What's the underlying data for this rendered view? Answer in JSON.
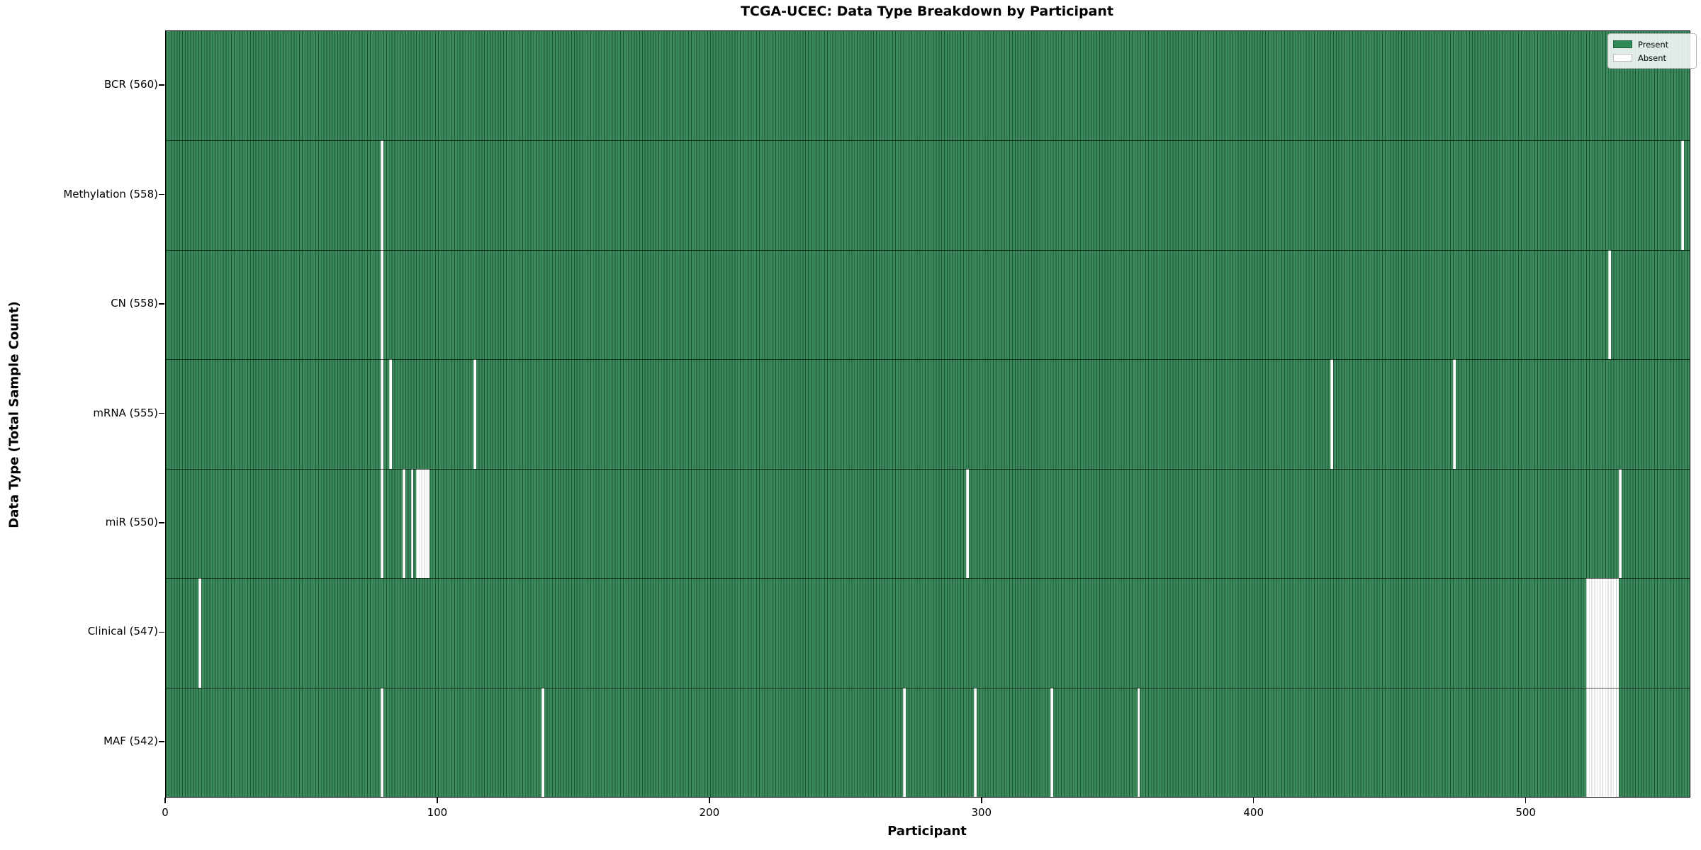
{
  "figure": {
    "title": "TCGA-UCEC: Data Type Breakdown by Participant",
    "xlabel": "Participant",
    "ylabel": "Data Type (Total Sample Count)"
  },
  "legend": {
    "present_label": "Present",
    "absent_label": "Absent",
    "present_color": "#2e8b57",
    "absent_color": "#ffffff"
  },
  "colors": {
    "bar_fill": "#3a8a5c",
    "bar_edge": "#1f5233",
    "absent_fill": "#ffffff"
  },
  "chart_data": {
    "type": "heatmap",
    "title": "TCGA-UCEC: Data Type Breakdown by Participant",
    "xlabel": "Participant",
    "ylabel": "Data Type (Total Sample Count)",
    "xlim": [
      0,
      560
    ],
    "x_ticks": [
      0,
      100,
      200,
      300,
      400,
      500
    ],
    "n_participants": 560,
    "legend_position": "upper right",
    "grid": false,
    "rows": [
      {
        "label": "BCR (560)",
        "name": "BCR",
        "present_count": 560,
        "absent_participants": []
      },
      {
        "label": "Methylation (558)",
        "name": "Methylation",
        "present_count": 558,
        "absent_participants": [
          79,
          557
        ]
      },
      {
        "label": "CN (558)",
        "name": "CN",
        "present_count": 558,
        "absent_participants": [
          79,
          530
        ]
      },
      {
        "label": "mRNA (555)",
        "name": "mRNA",
        "present_count": 555,
        "absent_participants": [
          79,
          82,
          113,
          428,
          473
        ]
      },
      {
        "label": "miR (550)",
        "name": "miR",
        "present_count": 550,
        "absent_participants": [
          79,
          87,
          90,
          92,
          93,
          94,
          95,
          96,
          294,
          534
        ]
      },
      {
        "label": "Clinical (547)",
        "name": "Clinical",
        "present_count": 547,
        "absent_participants": [
          12,
          522,
          523,
          524,
          525,
          526,
          527,
          528,
          529,
          530,
          531,
          532,
          533
        ]
      },
      {
        "label": "MAF (542)",
        "name": "MAF",
        "present_count": 542,
        "absent_participants": [
          79,
          138,
          271,
          297,
          325,
          357,
          522,
          523,
          524,
          525,
          526,
          527,
          528,
          529,
          530,
          531,
          532,
          533
        ]
      }
    ]
  }
}
